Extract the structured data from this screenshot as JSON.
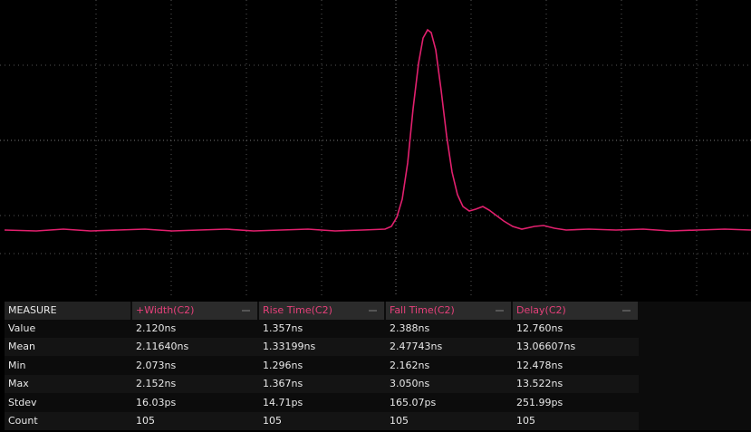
{
  "table": {
    "header": [
      "MEASURE",
      "+Width(C2)",
      "Rise Time(C2)",
      "Fall Time(C2)",
      "Delay(C2)"
    ],
    "rows": [
      [
        "Value",
        "2.120ns",
        "1.357ns",
        "2.388ns",
        "12.760ns"
      ],
      [
        "Mean",
        "2.11640ns",
        "1.33199ns",
        "2.47743ns",
        "13.06607ns"
      ],
      [
        "Min",
        "2.073ns",
        "1.296ns",
        "2.162ns",
        "12.478ns"
      ],
      [
        "Max",
        "2.152ns",
        "1.367ns",
        "3.050ns",
        "13.522ns"
      ],
      [
        "Stdev",
        "16.03ps",
        "14.71ps",
        "165.07ps",
        "251.99ps"
      ],
      [
        "Count",
        "105",
        "105",
        "105",
        "105"
      ]
    ]
  }
}
